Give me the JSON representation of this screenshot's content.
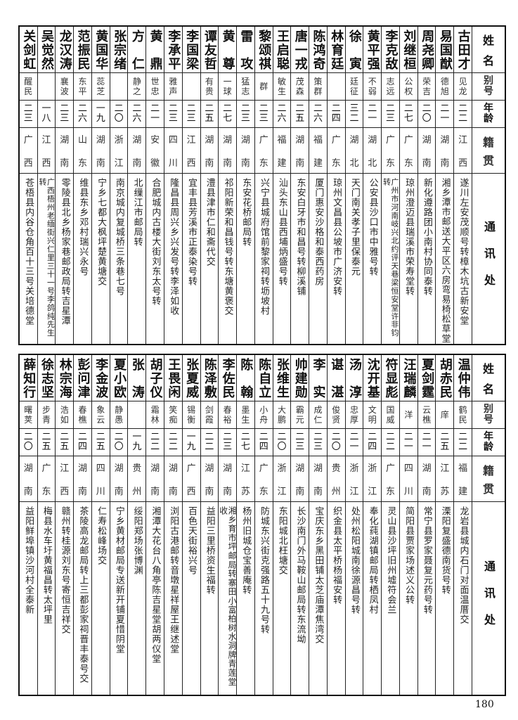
{
  "headers": {
    "name": "姓名",
    "alias": "别号",
    "age": "年龄",
    "origin": "籍贯",
    "address": "通讯处"
  },
  "tables": [
    {
      "rows": [
        {
          "name": "古田才",
          "alias": "见龙",
          "age": "二二",
          "origin": "江西",
          "address": "遂川左安茂顺号转樟木坑古新安堂"
        },
        {
          "name": "易国猷",
          "alias": "德旭",
          "age": "二一",
          "origin": "湖南",
          "address": "湘乡潭市邮送大平区六房弯易椅松草堂"
        },
        {
          "name": "周尧卿",
          "alias": "荣吉",
          "age": "二〇",
          "origin": "湖南",
          "address": "新化遵路团小南村协同泰转"
        },
        {
          "name": "刘继桓",
          "alias": "公权",
          "age": "二七",
          "origin": "广东",
          "address": "琼州澄迈县瑞溪市荣寿堂转"
        },
        {
          "name": "李克敌",
          "alias": "志远",
          "age": "二三",
          "origin": "广东",
          "address": "广州市河南岐兴北约评天巷梁恒安堂许非钧转"
        },
        {
          "name": "黄平强",
          "alias": "不弱",
          "age": "二一",
          "origin": "湖北",
          "address": "公安县沙口市中雅号转"
        },
        {
          "name": "徐寅",
          "alias": "廷征",
          "age": "三二",
          "origin": "湖北",
          "address": "天门南关孝子里保泰元"
        },
        {
          "name": "林育廷",
          "alias": "",
          "age": "二四",
          "origin": "广东",
          "address": "琼州文昌县公坡市广济安转"
        },
        {
          "name": "陈鸿奇",
          "alias": "策群",
          "age": "二六",
          "origin": "福建",
          "address": "厦门惠安沙格和泰西药房"
        },
        {
          "name": "唐一戎",
          "alias": "茂森",
          "age": "二五",
          "origin": "湖南",
          "address": "东安白牙市和昌号转柳溪铺"
        },
        {
          "name": "王启聪",
          "alias": "敏生",
          "age": "二六",
          "origin": "福建",
          "address": "汕头东山县西埔炳盛号转"
        },
        {
          "name": "黎颂祺",
          "alias": "群",
          "age": "二三",
          "origin": "广东",
          "address": "兴宁县城府馆前黎家祠转坜坡村"
        },
        {
          "name": "雷攻",
          "alias": "猛志",
          "age": "二三",
          "origin": "湖南",
          "address": "东安花桥邮局转"
        },
        {
          "name": "黄尊",
          "alias": "一球",
          "age": "二七",
          "origin": "湖南",
          "address": "祁阳新荣和昌钱号转东塘黄褒交"
        },
        {
          "name": "谭友哲",
          "alias": "有贵",
          "age": "二五",
          "origin": "湖南",
          "address": "澧县津市仁和斋代交"
        },
        {
          "name": "李国梁",
          "alias": "",
          "age": "二三",
          "origin": "江西",
          "address": "宜丰县芳溪市正泰染号转"
        },
        {
          "name": "李承平",
          "alias": "雅声",
          "age": "二三",
          "origin": "四川",
          "address": "隆昌县周兴乡兴发号转李泽如收"
        },
        {
          "name": "黄鼎",
          "alias": "世忠",
          "age": "二一",
          "origin": "安徽",
          "address": "合肥城内古楼大街刘东太号转"
        },
        {
          "name": "方仁",
          "alias": "静之",
          "age": "二六",
          "origin": "湖南",
          "address": "北缫江市邮局转"
        },
        {
          "name": "张宗绪",
          "alias": "",
          "age": "二〇",
          "origin": "浙江",
          "address": "南京城内复城桥三条巷七号"
        },
        {
          "name": "黄国华",
          "alias": "蕊芝",
          "age": "一九",
          "origin": "湖南",
          "address": "宁乡七都大枫坪楚黄塘交"
        },
        {
          "name": "范振民",
          "alias": "东平",
          "age": "二六",
          "origin": "山东",
          "address": "维县东乡邓村瑞兴永号"
        },
        {
          "name": "龙汉涛",
          "alias": "襄波",
          "age": "二三",
          "origin": "湖南",
          "address": "零陵县北乡杨家巷邮政局转吉星潭"
        },
        {
          "name": "吴觉然",
          "alias": "",
          "age": "一八",
          "origin": "江西",
          "address": "广西梧州老缅街兴仁里三十一号李鸽纯先生转"
        },
        {
          "name": "关剑虹",
          "alias": "醒民",
          "age": "二三",
          "origin": "广西",
          "address": "苍梧县内谷仓角百十三号关培德堂"
        }
      ]
    },
    {
      "rows": [
        {
          "name": "温仲伟",
          "alias": "鹤民",
          "age": "二二",
          "origin": "福建",
          "address": "龙岩县城内石门对面温厝交"
        },
        {
          "name": "胡赤民",
          "alias": "庠",
          "age": "二五",
          "origin": "江苏",
          "address": "溧阳复盛德南货号转"
        },
        {
          "name": "夏剑霆",
          "alias": "云樵",
          "age": "二一",
          "origin": "湖南",
          "address": "常宁县罗家聂复元药号转"
        },
        {
          "name": "汪瑞麟",
          "alias": "洋",
          "age": "二一",
          "origin": "四川",
          "address": "简阳县贾家场述义公转"
        },
        {
          "name": "符显彪",
          "alias": "国威",
          "age": "二二",
          "origin": "广东",
          "address": "灵山县沙坪旧州墟符会兰"
        },
        {
          "name": "沈开基",
          "alias": "文明",
          "age": "二四",
          "origin": "浙江",
          "address": "奉化莼湖镇邮局转栖凤村"
        },
        {
          "name": "汤淳",
          "alias": "忠厚",
          "age": "二一",
          "origin": "浙江",
          "address": "处州松阳城南徐源昌号转"
        },
        {
          "name": "谌湛",
          "alias": "俊贤",
          "age": "二〇",
          "origin": "贵州",
          "address": "织金县太平桥杨福安转"
        },
        {
          "name": "李实",
          "alias": "成仁",
          "age": "二三",
          "origin": "湖南",
          "address": "宝庆东乡黑田铺太芝庙潭焦湾交"
        },
        {
          "name": "帅建勋",
          "alias": "霸元",
          "age": "二三",
          "origin": "湖南",
          "address": "长沙南门外马鞍山邮局转东流坳"
        },
        {
          "name": "张维生",
          "alias": "大鹏",
          "age": "二〇",
          "origin": "浙江",
          "address": "东阳城北枉塘交"
        },
        {
          "name": "陈自立",
          "alias": "小舟",
          "age": "二四",
          "origin": "广东",
          "address": "防城东兴街克强路五十九号转"
        },
        {
          "name": "陈翰",
          "alias": "墨生",
          "age": "二七",
          "origin": "江苏",
          "address": "杨州旧城仓宝善庵转"
        },
        {
          "name": "李佐民",
          "alias": "春裕",
          "age": "二三",
          "origin": "湖南",
          "address": "湘乡育市坪邮局转寨田小富柏树水洞牌青莲堂收"
        },
        {
          "name": "陈泽敷",
          "alias": "剑霞",
          "age": "二二",
          "origin": "湖南",
          "address": "益阳三里桥资生福转"
        },
        {
          "name": "张夏威",
          "alias": "锡衡",
          "age": "一九",
          "origin": "广西",
          "address": "百色天街裕兴号"
        },
        {
          "name": "王畏闲",
          "alias": "笑痴",
          "age": "二二",
          "origin": "湖南",
          "address": "浏阳古港邮转音墩星祥屋王继述堂"
        },
        {
          "name": "胡子仪",
          "alias": "霜林",
          "age": "二二",
          "origin": "湖南",
          "address": "湘潭大花台八角亭陈吉星堂胡两仪堂"
        },
        {
          "name": "张涛",
          "alias": "",
          "age": "一九",
          "origin": "贵州",
          "address": "绥阳郑场张博渊"
        },
        {
          "name": "夏小欧",
          "alias": "静愚",
          "age": "二〇",
          "origin": "湖南",
          "address": "宁乡黄材邮局专送新开铺夏惜阴堂"
        },
        {
          "name": "李金波",
          "alias": "象云",
          "age": "二五",
          "origin": "四川",
          "address": "仁寿松峰场交"
        },
        {
          "name": "彭问津",
          "alias": "春樵",
          "age": "二四",
          "origin": "湖南",
          "address": "茶陵高龙邮局转上三都彭家祠晋丰泰号交"
        },
        {
          "name": "林宗海",
          "alias": "浩如",
          "age": "二五",
          "origin": "江西",
          "address": "赣州转桂源刘东号寄恒吉祥交"
        },
        {
          "name": "徐志坚",
          "alias": "步青",
          "age": "二五",
          "origin": "广东",
          "address": "梅县水车圩黄福昌转太坪里"
        },
        {
          "name": "薛知行",
          "alias": "曙荚",
          "age": "二〇",
          "origin": "湖南",
          "address": "益阳鲜埠镇沙河村全泰新"
        }
      ]
    }
  ],
  "page_number": "180"
}
